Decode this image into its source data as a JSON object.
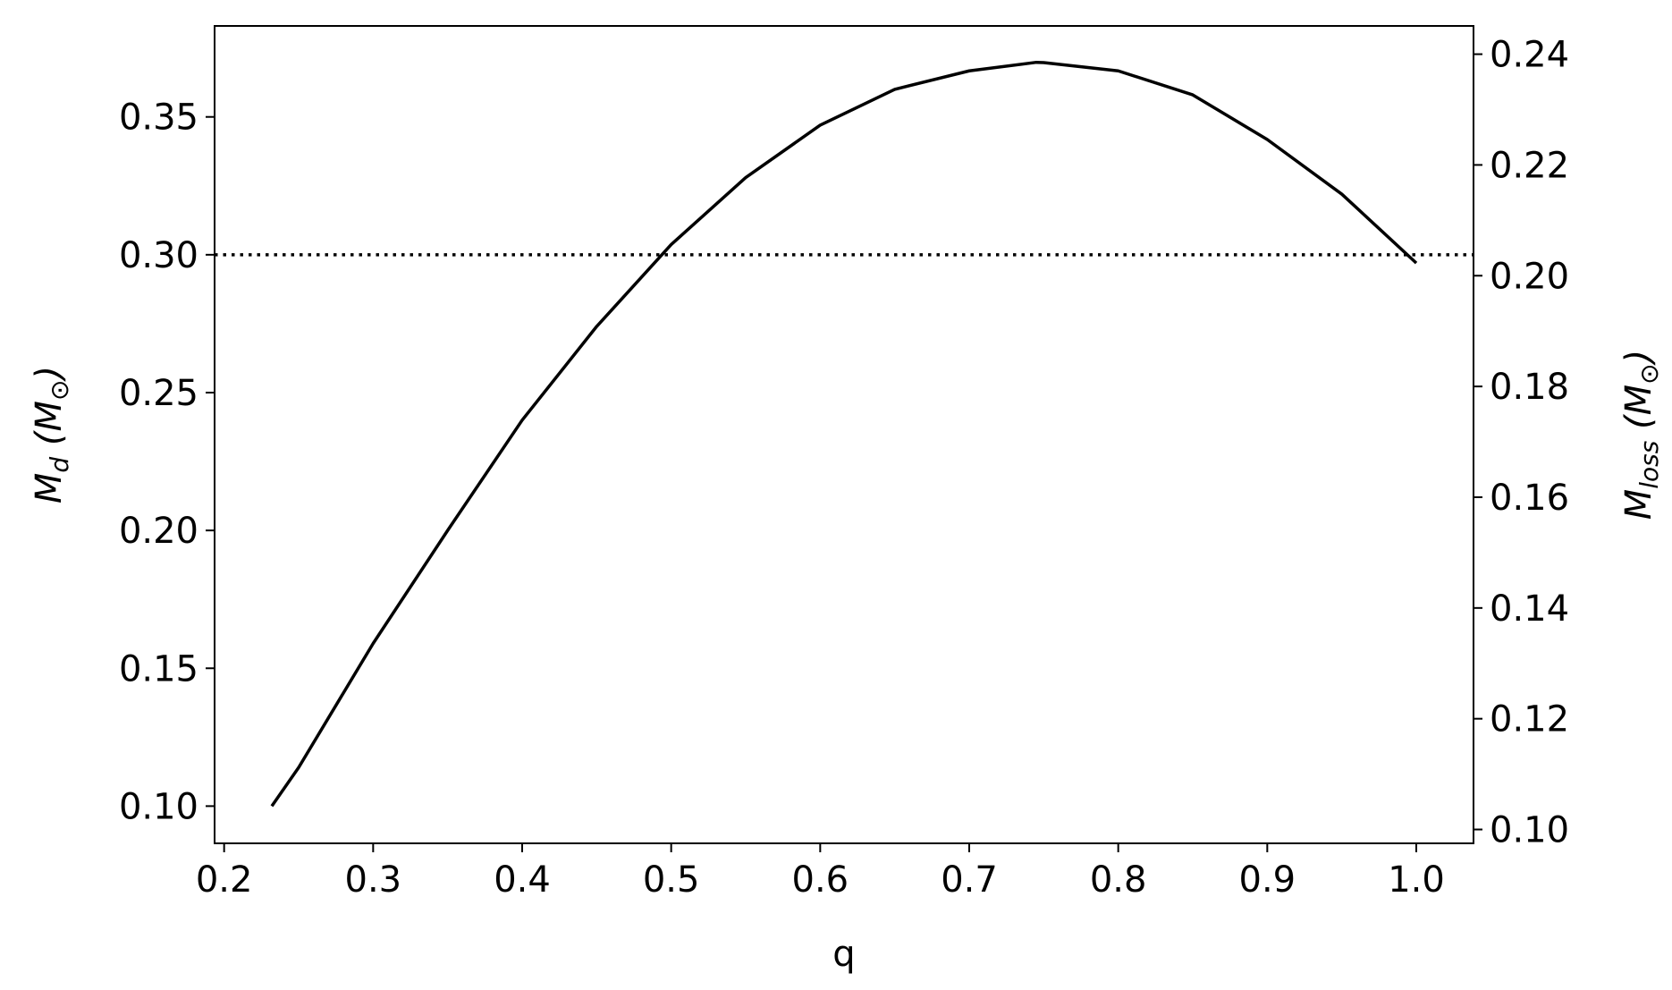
{
  "chart_data": {
    "type": "line",
    "xlabel": "q",
    "ylabel": [
      {
        "text": "M"
      },
      {
        "text": "d",
        "sub": true
      },
      {
        "text": " ("
      },
      {
        "text": "M"
      },
      {
        "text": "⊙",
        "sub": true
      },
      {
        "text": ")"
      }
    ],
    "y2label": [
      {
        "text": "M"
      },
      {
        "text": "loss",
        "sub": true
      },
      {
        "text": " ("
      },
      {
        "text": "M"
      },
      {
        "text": "⊙",
        "sub": true
      },
      {
        "text": ")"
      }
    ],
    "x": [
      0.232,
      0.25,
      0.3,
      0.35,
      0.4,
      0.45,
      0.5,
      0.55,
      0.6,
      0.65,
      0.7,
      0.745,
      0.75,
      0.8,
      0.85,
      0.9,
      0.95,
      1.0
    ],
    "series": [
      {
        "color": "#000000",
        "values": [
          0.1,
          0.114,
          0.159,
          0.2,
          0.24,
          0.274,
          0.3037,
          0.328,
          0.347,
          0.36,
          0.3667,
          0.3698,
          0.3697,
          0.3667,
          0.358,
          0.3418,
          0.322,
          0.297
        ]
      }
    ],
    "hlines": [
      {
        "y": 0.3,
        "color": "#000000",
        "style": "dotted"
      }
    ],
    "xlim": [
      0.1936,
      1.0384
    ],
    "xticks": [
      0.2,
      0.3,
      0.4,
      0.5,
      0.6,
      0.7,
      0.8,
      0.9,
      {
        "value": 1.0,
        "label": "1.0"
      }
    ],
    "ylim": [
      0.0865,
      0.383
    ],
    "yticks": [
      {
        "value": 0.1,
        "label": "0.10"
      },
      0.15,
      {
        "value": 0.2,
        "label": "0.20"
      },
      0.25,
      {
        "value": 0.3,
        "label": "0.30"
      },
      0.35
    ],
    "y2lim": [
      0.0975,
      0.2451
    ],
    "y2ticks": [
      {
        "value": 0.1,
        "label": "0.10"
      },
      0.12,
      0.14,
      0.16,
      0.18,
      {
        "value": 0.2,
        "label": "0.20"
      },
      0.22,
      0.24
    ],
    "grid": false
  }
}
